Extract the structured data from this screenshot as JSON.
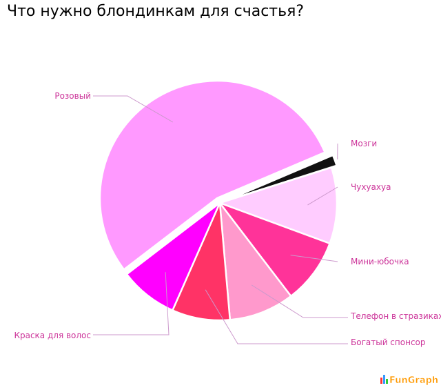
{
  "title": "Что нужно блондинкам для счастья?",
  "watermark": "FunGraph",
  "chart_data": {
    "type": "pie",
    "title": "Что нужно блондинкам для счастья?",
    "start_angle_deg": -23,
    "slices": [
      {
        "label": "Мозги",
        "value": 1.5,
        "color": "#111111",
        "exploded": true
      },
      {
        "label": "Чухуахуа",
        "value": 10.5,
        "color": "#ffccff"
      },
      {
        "label": "Мини-юбочка",
        "value": 9,
        "color": "#ff3399"
      },
      {
        "label": "Телефон в стразиках",
        "value": 9,
        "color": "#ff99cc"
      },
      {
        "label": "Богатый спонсор",
        "value": 8,
        "color": "#ff3366"
      },
      {
        "label": "Краска для волос",
        "value": 8,
        "color": "#ff00ff"
      },
      {
        "label": "Розовый",
        "value": 54,
        "color": "#ff99ff",
        "exploded": true
      }
    ],
    "label_color": "#cc3399",
    "leader_color": "#cc99cc"
  }
}
